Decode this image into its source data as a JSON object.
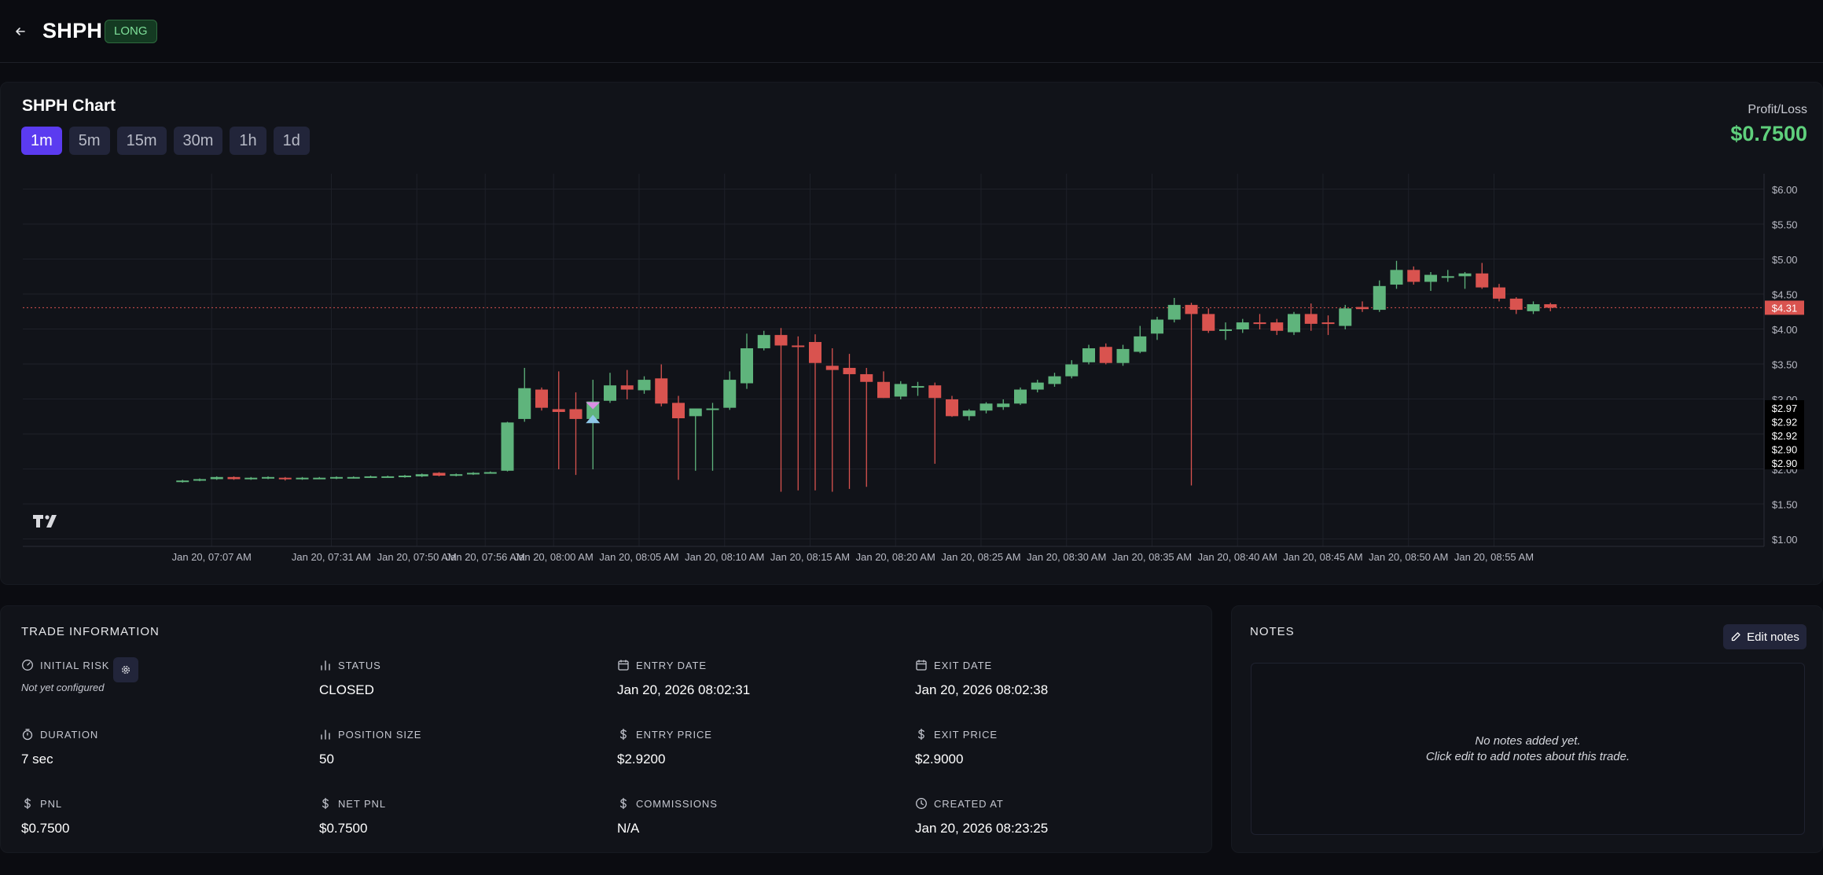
{
  "header": {
    "symbol": "SHPH",
    "side_badge": "LONG"
  },
  "chart_card": {
    "title": "SHPH Chart",
    "timeframes": [
      "1m",
      "5m",
      "15m",
      "30m",
      "1h",
      "1d"
    ],
    "active_timeframe": "1m",
    "pnl_label": "Profit/Loss",
    "pnl_value": "$0.7500"
  },
  "chart_data": {
    "type": "candlestick",
    "title": "",
    "yaxis_side": "right",
    "ylim": [
      1.0,
      6.25
    ],
    "y_ticks": [
      "$6.00",
      "$5.50",
      "$5.00",
      "$4.50",
      "$4.00",
      "$3.50",
      "$3.00",
      "$2.50",
      "$2.00",
      "$1.50",
      "$1.00"
    ],
    "y_tick_values": [
      6.0,
      5.5,
      5.0,
      4.5,
      4.0,
      3.5,
      3.0,
      2.5,
      2.0,
      1.5,
      1.0
    ],
    "x_ticks": [
      "Jan 20, 07:07 AM",
      "Jan 20, 07:31 AM",
      "Jan 20, 07:50 AM",
      "Jan 20, 07:56 AM",
      "Jan 20, 08:00 AM",
      "Jan 20, 08:05 AM",
      "Jan 20, 08:10 AM",
      "Jan 20, 08:15 AM",
      "Jan 20, 08:20 AM",
      "Jan 20, 08:25 AM",
      "Jan 20, 08:30 AM",
      "Jan 20, 08:35 AM",
      "Jan 20, 08:40 AM",
      "Jan 20, 08:45 AM",
      "Jan 20, 08:50 AM",
      "Jan 20, 08:55 AM"
    ],
    "x_tick_slots": [
      0.7,
      7.7,
      12.7,
      16.7,
      20.7,
      25.7,
      30.7,
      35.7,
      40.7,
      45.7,
      50.7,
      55.7,
      60.7,
      65.7,
      70.7,
      75.7
    ],
    "current_price_label": "$4.31",
    "current_price": 4.31,
    "marker_labels": [
      "$2.97",
      "$2.92",
      "$2.92",
      "$2.90",
      "$2.90"
    ],
    "up_color": "#5fb47c",
    "down_color": "#d9534f",
    "candles": [
      {
        "slot": -1.0,
        "o": 1.82,
        "h": 1.85,
        "l": 1.81,
        "c": 1.84
      },
      {
        "slot": 0.0,
        "o": 1.84,
        "h": 1.87,
        "l": 1.83,
        "c": 1.86
      },
      {
        "slot": 1.0,
        "o": 1.86,
        "h": 1.9,
        "l": 1.85,
        "c": 1.89
      },
      {
        "slot": 2.0,
        "o": 1.89,
        "h": 1.9,
        "l": 1.85,
        "c": 1.86
      },
      {
        "slot": 3.0,
        "o": 1.86,
        "h": 1.89,
        "l": 1.85,
        "c": 1.88
      },
      {
        "slot": 4.0,
        "o": 1.88,
        "h": 1.9,
        "l": 1.86,
        "c": 1.89
      },
      {
        "slot": 5.0,
        "o": 1.88,
        "h": 1.89,
        "l": 1.84,
        "c": 1.86
      },
      {
        "slot": 6.0,
        "o": 1.86,
        "h": 1.89,
        "l": 1.85,
        "c": 1.88
      },
      {
        "slot": 7.0,
        "o": 1.87,
        "h": 1.89,
        "l": 1.86,
        "c": 1.88
      },
      {
        "slot": 8.0,
        "o": 1.87,
        "h": 1.9,
        "l": 1.86,
        "c": 1.89
      },
      {
        "slot": 9.0,
        "o": 1.88,
        "h": 1.9,
        "l": 1.87,
        "c": 1.89
      },
      {
        "slot": 10.0,
        "o": 1.89,
        "h": 1.91,
        "l": 1.88,
        "c": 1.9
      },
      {
        "slot": 11.0,
        "o": 1.89,
        "h": 1.91,
        "l": 1.88,
        "c": 1.9
      },
      {
        "slot": 12.0,
        "o": 1.89,
        "h": 1.92,
        "l": 1.88,
        "c": 1.91
      },
      {
        "slot": 13.0,
        "o": 1.9,
        "h": 1.94,
        "l": 1.89,
        "c": 1.93
      },
      {
        "slot": 14.0,
        "o": 1.95,
        "h": 1.96,
        "l": 1.9,
        "c": 1.91
      },
      {
        "slot": 15.0,
        "o": 1.91,
        "h": 1.94,
        "l": 1.9,
        "c": 1.93
      },
      {
        "slot": 16.0,
        "o": 1.93,
        "h": 1.96,
        "l": 1.92,
        "c": 1.95
      },
      {
        "slot": 17.0,
        "o": 1.95,
        "h": 1.97,
        "l": 1.94,
        "c": 1.96
      },
      {
        "slot": 18.0,
        "o": 1.98,
        "h": 2.68,
        "l": 1.97,
        "c": 2.67
      },
      {
        "slot": 19.0,
        "o": 2.72,
        "h": 3.45,
        "l": 2.68,
        "c": 3.16
      },
      {
        "slot": 20.0,
        "o": 3.14,
        "h": 3.17,
        "l": 2.84,
        "c": 2.88
      },
      {
        "slot": 21.0,
        "o": 2.86,
        "h": 3.4,
        "l": 2.0,
        "c": 2.82
      },
      {
        "slot": 22.0,
        "o": 2.86,
        "h": 3.1,
        "l": 1.92,
        "c": 2.72
      },
      {
        "slot": 23.0,
        "o": 2.72,
        "h": 3.28,
        "l": 2.0,
        "c": 2.97
      },
      {
        "slot": 24.0,
        "o": 2.98,
        "h": 3.38,
        "l": 2.95,
        "c": 3.2
      },
      {
        "slot": 25.0,
        "o": 3.2,
        "h": 3.42,
        "l": 3.0,
        "c": 3.14
      },
      {
        "slot": 26.0,
        "o": 3.13,
        "h": 3.33,
        "l": 3.08,
        "c": 3.28
      },
      {
        "slot": 27.0,
        "o": 3.3,
        "h": 3.5,
        "l": 2.9,
        "c": 2.94
      },
      {
        "slot": 28.0,
        "o": 2.95,
        "h": 3.05,
        "l": 1.85,
        "c": 2.73
      },
      {
        "slot": 29.0,
        "o": 2.76,
        "h": 2.85,
        "l": 1.98,
        "c": 2.87
      },
      {
        "slot": 30.0,
        "o": 2.86,
        "h": 2.95,
        "l": 1.98,
        "c": 2.87
      },
      {
        "slot": 31.0,
        "o": 2.88,
        "h": 3.4,
        "l": 2.85,
        "c": 3.28
      },
      {
        "slot": 32.0,
        "o": 3.23,
        "h": 3.94,
        "l": 3.15,
        "c": 3.73
      },
      {
        "slot": 33.0,
        "o": 3.73,
        "h": 3.98,
        "l": 3.7,
        "c": 3.92
      },
      {
        "slot": 34.0,
        "o": 3.92,
        "h": 4.02,
        "l": 1.68,
        "c": 3.77
      },
      {
        "slot": 35.0,
        "o": 3.77,
        "h": 3.9,
        "l": 1.7,
        "c": 3.76
      },
      {
        "slot": 36.0,
        "o": 3.82,
        "h": 3.93,
        "l": 1.7,
        "c": 3.52
      },
      {
        "slot": 37.0,
        "o": 3.48,
        "h": 3.73,
        "l": 1.68,
        "c": 3.42
      },
      {
        "slot": 38.0,
        "o": 3.45,
        "h": 3.65,
        "l": 1.72,
        "c": 3.36
      },
      {
        "slot": 39.0,
        "o": 3.36,
        "h": 3.45,
        "l": 1.75,
        "c": 3.25
      },
      {
        "slot": 40.0,
        "o": 3.25,
        "h": 3.4,
        "l": 3.02,
        "c": 3.02
      },
      {
        "slot": 41.0,
        "o": 3.04,
        "h": 3.26,
        "l": 3.0,
        "c": 3.22
      },
      {
        "slot": 42.0,
        "o": 3.17,
        "h": 3.25,
        "l": 3.05,
        "c": 3.19
      },
      {
        "slot": 43.0,
        "o": 3.2,
        "h": 3.24,
        "l": 2.08,
        "c": 3.02
      },
      {
        "slot": 44.0,
        "o": 3.0,
        "h": 3.05,
        "l": 2.75,
        "c": 2.76
      },
      {
        "slot": 45.0,
        "o": 2.76,
        "h": 2.86,
        "l": 2.7,
        "c": 2.84
      },
      {
        "slot": 46.0,
        "o": 2.84,
        "h": 2.96,
        "l": 2.8,
        "c": 2.94
      },
      {
        "slot": 47.0,
        "o": 2.89,
        "h": 3.0,
        "l": 2.85,
        "c": 2.94
      },
      {
        "slot": 48.0,
        "o": 2.94,
        "h": 3.17,
        "l": 2.92,
        "c": 3.14
      },
      {
        "slot": 49.0,
        "o": 3.14,
        "h": 3.28,
        "l": 3.1,
        "c": 3.24
      },
      {
        "slot": 50.0,
        "o": 3.22,
        "h": 3.38,
        "l": 3.18,
        "c": 3.33
      },
      {
        "slot": 51.0,
        "o": 3.33,
        "h": 3.56,
        "l": 3.3,
        "c": 3.5
      },
      {
        "slot": 52.0,
        "o": 3.53,
        "h": 3.78,
        "l": 3.5,
        "c": 3.73
      },
      {
        "slot": 53.0,
        "o": 3.75,
        "h": 3.8,
        "l": 3.5,
        "c": 3.52
      },
      {
        "slot": 54.0,
        "o": 3.52,
        "h": 3.78,
        "l": 3.48,
        "c": 3.72
      },
      {
        "slot": 55.0,
        "o": 3.68,
        "h": 4.05,
        "l": 3.66,
        "c": 3.9
      },
      {
        "slot": 56.0,
        "o": 3.94,
        "h": 4.18,
        "l": 3.85,
        "c": 4.14
      },
      {
        "slot": 57.0,
        "o": 4.14,
        "h": 4.45,
        "l": 4.1,
        "c": 4.35
      },
      {
        "slot": 58.0,
        "o": 4.35,
        "h": 4.38,
        "l": 1.77,
        "c": 4.22
      },
      {
        "slot": 59.0,
        "o": 4.22,
        "h": 4.3,
        "l": 3.95,
        "c": 3.98
      },
      {
        "slot": 60.0,
        "o": 3.98,
        "h": 4.1,
        "l": 3.85,
        "c": 4.0
      },
      {
        "slot": 61.0,
        "o": 4.0,
        "h": 4.15,
        "l": 3.95,
        "c": 4.1
      },
      {
        "slot": 62.0,
        "o": 4.1,
        "h": 4.22,
        "l": 4.0,
        "c": 4.08
      },
      {
        "slot": 63.0,
        "o": 4.1,
        "h": 4.15,
        "l": 3.92,
        "c": 3.98
      },
      {
        "slot": 64.0,
        "o": 3.96,
        "h": 4.25,
        "l": 3.92,
        "c": 4.22
      },
      {
        "slot": 65.0,
        "o": 4.22,
        "h": 4.37,
        "l": 3.98,
        "c": 4.08
      },
      {
        "slot": 66.0,
        "o": 4.1,
        "h": 4.2,
        "l": 3.92,
        "c": 4.08
      },
      {
        "slot": 67.0,
        "o": 4.05,
        "h": 4.35,
        "l": 4.0,
        "c": 4.3
      },
      {
        "slot": 68.0,
        "o": 4.32,
        "h": 4.4,
        "l": 4.25,
        "c": 4.29
      },
      {
        "slot": 69.0,
        "o": 4.28,
        "h": 4.7,
        "l": 4.25,
        "c": 4.62
      },
      {
        "slot": 70.0,
        "o": 4.64,
        "h": 4.98,
        "l": 4.58,
        "c": 4.85
      },
      {
        "slot": 71.0,
        "o": 4.85,
        "h": 4.9,
        "l": 4.64,
        "c": 4.68
      },
      {
        "slot": 72.0,
        "o": 4.68,
        "h": 4.82,
        "l": 4.55,
        "c": 4.78
      },
      {
        "slot": 73.0,
        "o": 4.76,
        "h": 4.85,
        "l": 4.68,
        "c": 4.76
      },
      {
        "slot": 74.0,
        "o": 4.76,
        "h": 4.82,
        "l": 4.58,
        "c": 4.8
      },
      {
        "slot": 75.0,
        "o": 4.8,
        "h": 4.95,
        "l": 4.58,
        "c": 4.6
      },
      {
        "slot": 76.0,
        "o": 4.6,
        "h": 4.65,
        "l": 4.4,
        "c": 4.44
      },
      {
        "slot": 77.0,
        "o": 4.44,
        "h": 4.46,
        "l": 4.22,
        "c": 4.28
      },
      {
        "slot": 78.0,
        "o": 4.26,
        "h": 4.4,
        "l": 4.22,
        "c": 4.36
      },
      {
        "slot": 79.0,
        "o": 4.36,
        "h": 4.38,
        "l": 4.26,
        "c": 4.31
      }
    ]
  },
  "trade_info": {
    "title": "TRADE INFORMATION",
    "initial_risk": {
      "label": "INITIAL RISK",
      "value": "Not yet configured"
    },
    "status": {
      "label": "STATUS",
      "value": "CLOSED"
    },
    "entry_date": {
      "label": "ENTRY DATE",
      "value": "Jan 20, 2026 08:02:31"
    },
    "exit_date": {
      "label": "EXIT DATE",
      "value": "Jan 20, 2026 08:02:38"
    },
    "duration": {
      "label": "DURATION",
      "value": "7 sec"
    },
    "position_size": {
      "label": "POSITION SIZE",
      "value": "50"
    },
    "entry_price": {
      "label": "ENTRY PRICE",
      "value": "$2.9200"
    },
    "exit_price": {
      "label": "EXIT PRICE",
      "value": "$2.9000"
    },
    "pnl": {
      "label": "PNL",
      "value": "$0.7500"
    },
    "net_pnl": {
      "label": "NET PNL",
      "value": "$0.7500"
    },
    "commissions": {
      "label": "COMMISSIONS",
      "value": "N/A"
    },
    "created_at": {
      "label": "CREATED AT",
      "value": "Jan 20, 2026 08:23:25"
    }
  },
  "notes": {
    "title": "NOTES",
    "edit_label": "Edit notes",
    "empty_line1": "No notes added yet.",
    "empty_line2": "Click edit to add notes about this trade."
  }
}
